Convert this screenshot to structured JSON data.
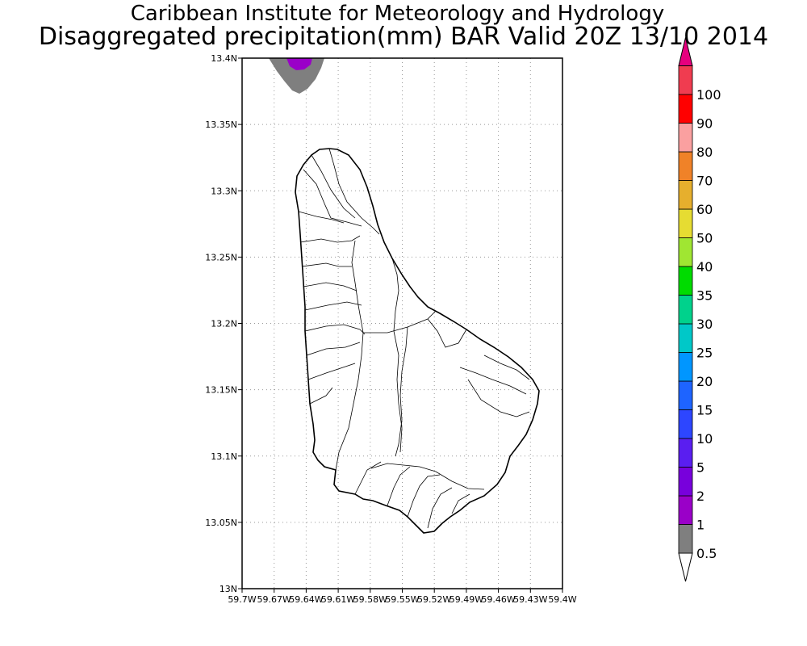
{
  "title": {
    "line1": "Caribbean Institute for Meteorology and Hydrology",
    "line2": "Disaggregated precipitation(mm) BAR Valid 20Z 13/10 2014"
  },
  "map": {
    "lat_range": [
      13.0,
      13.4
    ],
    "lon_range": [
      -59.7,
      -59.4
    ],
    "lat_ticks": [
      "13N",
      "13.05N",
      "13.1N",
      "13.15N",
      "13.2N",
      "13.25N",
      "13.3N",
      "13.35N",
      "13.4N"
    ],
    "lon_ticks": [
      "59.7W",
      "59.67W",
      "59.64W",
      "59.61W",
      "59.58W",
      "59.55W",
      "59.52W",
      "59.49W",
      "59.46W",
      "59.43W",
      "59.4W"
    ],
    "grid": "dotted",
    "region": "Barbados",
    "precip_features": [
      {
        "label": "0.5-1 mm",
        "color": "#7f7f7f"
      },
      {
        "label": "1-2 mm",
        "color": "#9a00c8"
      }
    ]
  },
  "colorbar": {
    "levels": [
      "0.5",
      "1",
      "2",
      "5",
      "10",
      "15",
      "20",
      "25",
      "30",
      "35",
      "40",
      "50",
      "60",
      "70",
      "80",
      "90",
      "100"
    ],
    "colors": [
      "#7f7f7f",
      "#9a00c8",
      "#7800dc",
      "#5a1ef0",
      "#2d46ff",
      "#1e64ff",
      "#0096ff",
      "#00c8c8",
      "#00d28c",
      "#00dc00",
      "#a0e632",
      "#e6dc32",
      "#e6af2d",
      "#f08228",
      "#faa0a0",
      "#ff0000",
      "#f03c50"
    ],
    "under_color": "#ffffff",
    "over_color": "#e6007e"
  }
}
